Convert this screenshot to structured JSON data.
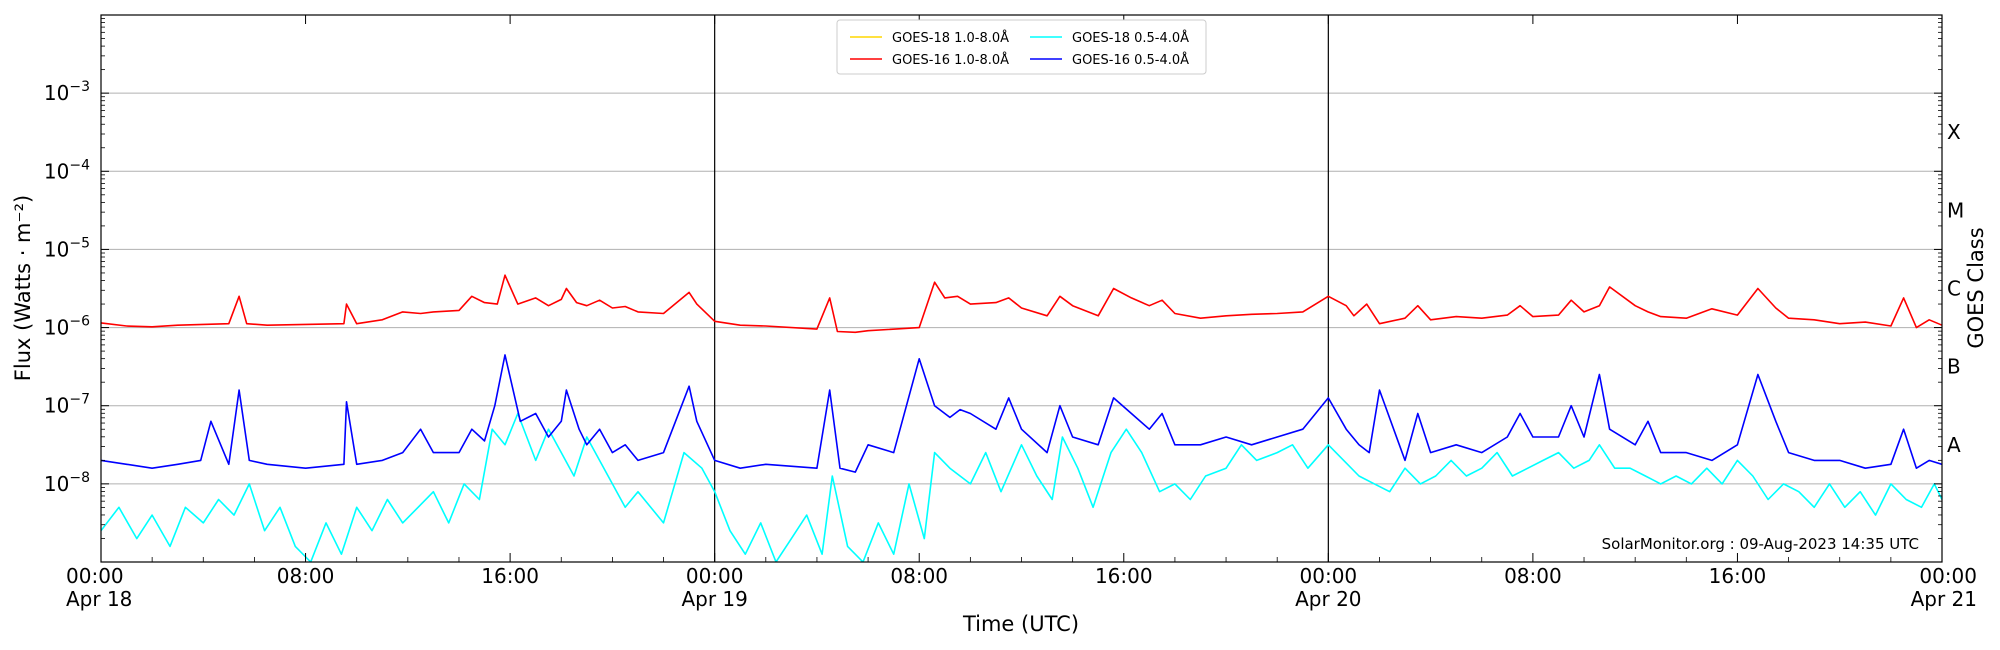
{
  "chart_data": {
    "type": "line",
    "title": "",
    "xlabel": "Time (UTC)",
    "ylabel": "Flux (Watts · m⁻²)",
    "y2label": "GOES Class",
    "credit": "SolarMonitor.org : 09-Aug-2023 14:35 UTC",
    "yscale": "log",
    "ylim": [
      1e-09,
      0.01
    ],
    "xlim_hours": [
      0,
      72
    ],
    "grid": "horizontal",
    "legend_position": "top-center",
    "x_ticks": [
      {
        "hour": 0,
        "time": "00:00",
        "date": "Apr 18"
      },
      {
        "hour": 8,
        "time": "08:00",
        "date": ""
      },
      {
        "hour": 16,
        "time": "16:00",
        "date": ""
      },
      {
        "hour": 24,
        "time": "00:00",
        "date": "Apr 19"
      },
      {
        "hour": 32,
        "time": "08:00",
        "date": ""
      },
      {
        "hour": 40,
        "time": "16:00",
        "date": ""
      },
      {
        "hour": 48,
        "time": "00:00",
        "date": "Apr 20"
      },
      {
        "hour": 56,
        "time": "08:00",
        "date": ""
      },
      {
        "hour": 64,
        "time": "16:00",
        "date": ""
      },
      {
        "hour": 72,
        "time": "00:00",
        "date": "Apr 21"
      }
    ],
    "y_ticks": [
      {
        "exp": -8,
        "label": "10",
        "sup": "−8"
      },
      {
        "exp": -7,
        "label": "10",
        "sup": "−7"
      },
      {
        "exp": -6,
        "label": "10",
        "sup": "−6"
      },
      {
        "exp": -5,
        "label": "10",
        "sup": "−5"
      },
      {
        "exp": -4,
        "label": "10",
        "sup": "−4"
      },
      {
        "exp": -3,
        "label": "10",
        "sup": "−3"
      }
    ],
    "class_labels": [
      {
        "label": "A",
        "exp": -8
      },
      {
        "label": "B",
        "exp": -7
      },
      {
        "label": "C",
        "exp": -6
      },
      {
        "label": "M",
        "exp": -5
      },
      {
        "label": "X",
        "exp": -4
      }
    ],
    "day_boundaries_hours": [
      24,
      48
    ],
    "series": [
      {
        "name": "GOES-18 1.0-8.0Å",
        "color": "#ffd700",
        "hours": [],
        "log_flux": []
      },
      {
        "name": "GOES-16 1.0-8.0Å",
        "color": "#ff0000",
        "hours": [
          0,
          1,
          2,
          3,
          4,
          5,
          5.4,
          5.7,
          6.5,
          8,
          9.5,
          9.6,
          10,
          11,
          11.8,
          12.5,
          13,
          14,
          14.5,
          15,
          15.5,
          15.8,
          16.3,
          17,
          17.5,
          18,
          18.2,
          18.6,
          19,
          19.5,
          20,
          20.5,
          21,
          22,
          23,
          23.3,
          24,
          25,
          26,
          28,
          28.5,
          28.8,
          29.5,
          30,
          32,
          32.6,
          33,
          33.5,
          34,
          35,
          35.5,
          36,
          37,
          37.5,
          38,
          39,
          39.6,
          40.3,
          41,
          41.5,
          42,
          43,
          44,
          45,
          46,
          47,
          48,
          48.7,
          49,
          49.5,
          50,
          51,
          51.5,
          52,
          53,
          54,
          55,
          55.5,
          56,
          57,
          57.5,
          58,
          58.6,
          59,
          60,
          60.5,
          61,
          62,
          63,
          64,
          64.8,
          65.5,
          66,
          67,
          68,
          69,
          70,
          70.5,
          71,
          71.5,
          72
        ],
        "log_flux": [
          -5.94,
          -5.98,
          -5.99,
          -5.97,
          -5.96,
          -5.95,
          -5.6,
          -5.95,
          -5.97,
          -5.96,
          -5.95,
          -5.7,
          -5.95,
          -5.9,
          -5.8,
          -5.82,
          -5.8,
          -5.78,
          -5.6,
          -5.68,
          -5.7,
          -5.33,
          -5.7,
          -5.62,
          -5.72,
          -5.64,
          -5.5,
          -5.68,
          -5.72,
          -5.65,
          -5.75,
          -5.73,
          -5.8,
          -5.82,
          -5.55,
          -5.7,
          -5.92,
          -5.97,
          -5.98,
          -6.02,
          -5.62,
          -6.05,
          -6.06,
          -6.04,
          -6.0,
          -5.42,
          -5.62,
          -5.6,
          -5.7,
          -5.68,
          -5.62,
          -5.75,
          -5.85,
          -5.6,
          -5.72,
          -5.85,
          -5.5,
          -5.62,
          -5.72,
          -5.65,
          -5.82,
          -5.88,
          -5.85,
          -5.83,
          -5.82,
          -5.8,
          -5.6,
          -5.72,
          -5.85,
          -5.7,
          -5.95,
          -5.88,
          -5.72,
          -5.9,
          -5.86,
          -5.88,
          -5.84,
          -5.72,
          -5.86,
          -5.84,
          -5.65,
          -5.8,
          -5.72,
          -5.48,
          -5.72,
          -5.8,
          -5.86,
          -5.88,
          -5.76,
          -5.84,
          -5.5,
          -5.75,
          -5.88,
          -5.9,
          -5.95,
          -5.93,
          -5.98,
          -5.62,
          -6.0,
          -5.9,
          -5.97
        ]
      },
      {
        "name": "GOES-18 0.5-4.0Å",
        "color": "#00ffff",
        "hours": [
          0,
          0.7,
          1.4,
          2,
          2.7,
          3.3,
          4,
          4.6,
          5.2,
          5.8,
          6.4,
          7,
          7.6,
          8.2,
          8.8,
          9.4,
          10,
          10.6,
          11.2,
          11.8,
          12.4,
          13,
          13.6,
          14.2,
          14.8,
          15.3,
          15.8,
          16.3,
          17,
          17.5,
          18,
          18.5,
          19,
          20,
          20.5,
          21,
          22,
          22.8,
          23.5,
          24,
          24.6,
          25.2,
          25.8,
          26.4,
          27,
          27.6,
          28.2,
          28.6,
          29.2,
          29.8,
          30.4,
          31,
          31.6,
          32.2,
          32.6,
          33.2,
          34,
          34.6,
          35.2,
          36,
          36.6,
          37.2,
          37.6,
          38.2,
          38.8,
          39.5,
          40.1,
          40.7,
          41.4,
          42,
          42.6,
          43.2,
          44,
          44.6,
          45.2,
          46,
          46.6,
          47.2,
          48,
          48.6,
          49.2,
          49.8,
          50.4,
          51,
          51.6,
          52.2,
          52.8,
          53.4,
          54,
          54.6,
          55.2,
          55.8,
          56.4,
          57,
          57.6,
          58.2,
          58.6,
          59.2,
          59.8,
          60.4,
          61,
          61.6,
          62.2,
          62.8,
          63.4,
          64,
          64.6,
          65.2,
          65.8,
          66.4,
          67,
          67.6,
          68.2,
          68.8,
          69.4,
          70,
          70.6,
          71.2,
          71.7,
          72
        ],
        "log_flux": [
          -8.6,
          -8.3,
          -8.7,
          -8.4,
          -8.8,
          -8.3,
          -8.5,
          -8.2,
          -8.4,
          -8.0,
          -8.6,
          -8.3,
          -8.8,
          -9.0,
          -8.5,
          -8.9,
          -8.3,
          -8.6,
          -8.2,
          -8.5,
          -8.3,
          -8.1,
          -8.5,
          -8.0,
          -8.2,
          -7.3,
          -7.5,
          -7.1,
          -7.7,
          -7.3,
          -7.6,
          -7.9,
          -7.4,
          -8.0,
          -8.3,
          -8.1,
          -8.5,
          -7.6,
          -7.8,
          -8.1,
          -8.6,
          -8.9,
          -8.5,
          -9.0,
          -8.7,
          -8.4,
          -8.9,
          -7.9,
          -8.8,
          -9.0,
          -8.5,
          -8.9,
          -8.0,
          -8.7,
          -7.6,
          -7.8,
          -8.0,
          -7.6,
          -8.1,
          -7.5,
          -7.9,
          -8.2,
          -7.4,
          -7.8,
          -8.3,
          -7.6,
          -7.3,
          -7.6,
          -8.1,
          -8.0,
          -8.2,
          -7.9,
          -7.8,
          -7.5,
          -7.7,
          -7.6,
          -7.5,
          -7.8,
          -7.5,
          -7.7,
          -7.9,
          -8.0,
          -8.1,
          -7.8,
          -8.0,
          -7.9,
          -7.7,
          -7.9,
          -7.8,
          -7.6,
          -7.9,
          -7.8,
          -7.7,
          -7.6,
          -7.8,
          -7.7,
          -7.5,
          -7.8,
          -7.8,
          -7.9,
          -8.0,
          -7.9,
          -8.0,
          -7.8,
          -8.0,
          -7.7,
          -7.9,
          -8.2,
          -8.0,
          -8.1,
          -8.3,
          -8.0,
          -8.3,
          -8.1,
          -8.4,
          -8.0,
          -8.2,
          -8.3,
          -8.0,
          -8.2
        ]
      },
      {
        "name": "GOES-16 0.5-4.0Å",
        "color": "#0000ff",
        "hours": [
          0,
          1,
          2,
          3,
          3.9,
          4.3,
          5,
          5.4,
          5.8,
          6.5,
          8,
          9.5,
          9.6,
          10,
          11,
          11.8,
          12.5,
          13,
          14,
          14.5,
          15,
          15.4,
          15.8,
          16.4,
          17,
          17.5,
          18,
          18.2,
          18.7,
          19,
          19.5,
          20,
          20.5,
          21,
          22,
          23,
          23.3,
          24,
          25,
          26,
          28,
          28.5,
          28.9,
          29.5,
          30,
          31,
          32,
          32.6,
          33.2,
          33.6,
          34,
          35,
          35.5,
          36,
          37,
          37.5,
          38,
          39,
          39.6,
          40.3,
          41,
          41.5,
          42,
          43,
          44,
          45,
          46,
          47,
          48,
          48.7,
          49.2,
          49.6,
          50,
          51,
          51.5,
          52,
          53,
          54,
          55,
          55.5,
          56,
          57,
          57.5,
          58,
          58.6,
          59,
          60,
          60.5,
          61,
          62,
          63,
          64,
          64.8,
          65.5,
          66,
          67,
          68,
          69,
          70,
          70.5,
          71,
          71.5,
          72
        ],
        "log_flux": [
          -7.7,
          -7.75,
          -7.8,
          -7.75,
          -7.7,
          -7.2,
          -7.75,
          -6.8,
          -7.7,
          -7.75,
          -7.8,
          -7.75,
          -6.95,
          -7.75,
          -7.7,
          -7.6,
          -7.3,
          -7.6,
          -7.6,
          -7.3,
          -7.45,
          -7.0,
          -6.35,
          -7.2,
          -7.1,
          -7.4,
          -7.2,
          -6.8,
          -7.3,
          -7.5,
          -7.3,
          -7.6,
          -7.5,
          -7.7,
          -7.6,
          -6.75,
          -7.2,
          -7.7,
          -7.8,
          -7.75,
          -7.8,
          -6.8,
          -7.8,
          -7.85,
          -7.5,
          -7.6,
          -6.4,
          -7.0,
          -7.15,
          -7.05,
          -7.1,
          -7.3,
          -6.9,
          -7.3,
          -7.6,
          -7.0,
          -7.4,
          -7.5,
          -6.9,
          -7.1,
          -7.3,
          -7.1,
          -7.5,
          -7.5,
          -7.4,
          -7.5,
          -7.4,
          -7.3,
          -6.9,
          -7.3,
          -7.5,
          -7.6,
          -6.8,
          -7.7,
          -7.1,
          -7.6,
          -7.5,
          -7.6,
          -7.4,
          -7.1,
          -7.4,
          -7.4,
          -7.0,
          -7.4,
          -6.6,
          -7.3,
          -7.5,
          -7.2,
          -7.6,
          -7.6,
          -7.7,
          -7.5,
          -6.6,
          -7.2,
          -7.6,
          -7.7,
          -7.7,
          -7.8,
          -7.75,
          -7.3,
          -7.8,
          -7.7,
          -7.75
        ]
      }
    ]
  }
}
